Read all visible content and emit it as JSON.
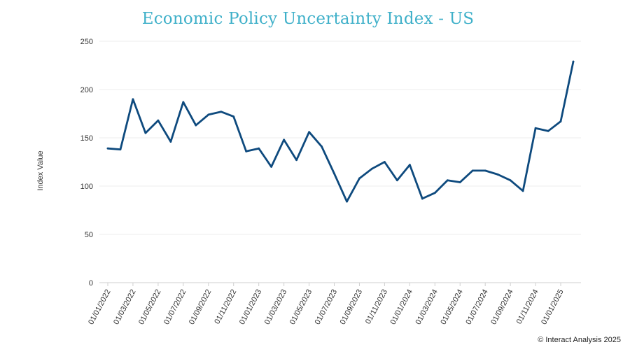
{
  "chart_data": {
    "type": "line",
    "title": "Economic Policy Uncertainty Index - US",
    "ylabel": "Index Value",
    "xlabel": "",
    "ylim": [
      0,
      250
    ],
    "yticks": [
      0,
      50,
      100,
      150,
      200,
      250
    ],
    "grid": true,
    "line_color": "#0e4a7e",
    "x": [
      "01/01/2022",
      "01/02/2022",
      "01/03/2022",
      "01/04/2022",
      "01/05/2022",
      "01/06/2022",
      "01/07/2022",
      "01/08/2022",
      "01/09/2022",
      "01/10/2022",
      "01/11/2022",
      "01/12/2022",
      "01/01/2023",
      "01/02/2023",
      "01/03/2023",
      "01/04/2023",
      "01/05/2023",
      "01/06/2023",
      "01/07/2023",
      "01/08/2023",
      "01/09/2023",
      "01/10/2023",
      "01/11/2023",
      "01/12/2023",
      "01/01/2024",
      "01/02/2024",
      "01/03/2024",
      "01/04/2024",
      "01/05/2024",
      "01/06/2024",
      "01/07/2024",
      "01/08/2024",
      "01/09/2024",
      "01/10/2024",
      "01/11/2024",
      "01/12/2024",
      "01/01/2025",
      "01/02/2025"
    ],
    "x_tick_labels": [
      "01/01/2022",
      "01/03/2022",
      "01/05/2022",
      "01/07/2022",
      "01/09/2022",
      "01/11/2022",
      "01/01/2023",
      "01/03/2023",
      "01/05/2023",
      "01/07/2023",
      "01/09/2023",
      "01/11/2023",
      "01/01/2024",
      "01/03/2024",
      "01/05/2024",
      "01/07/2024",
      "01/09/2024",
      "01/11/2024",
      "01/01/2025"
    ],
    "series": [
      {
        "values": [
          139,
          138,
          190,
          155,
          168,
          146,
          187,
          163,
          174,
          177,
          172,
          136,
          139,
          120,
          148,
          127,
          156,
          141,
          113,
          84,
          108,
          118,
          125,
          106,
          122,
          87,
          93,
          106,
          104,
          116,
          116,
          112,
          106,
          95,
          160,
          157,
          167,
          229
        ]
      }
    ]
  },
  "footer": {
    "credit": "© Interact Analysis 2025"
  }
}
